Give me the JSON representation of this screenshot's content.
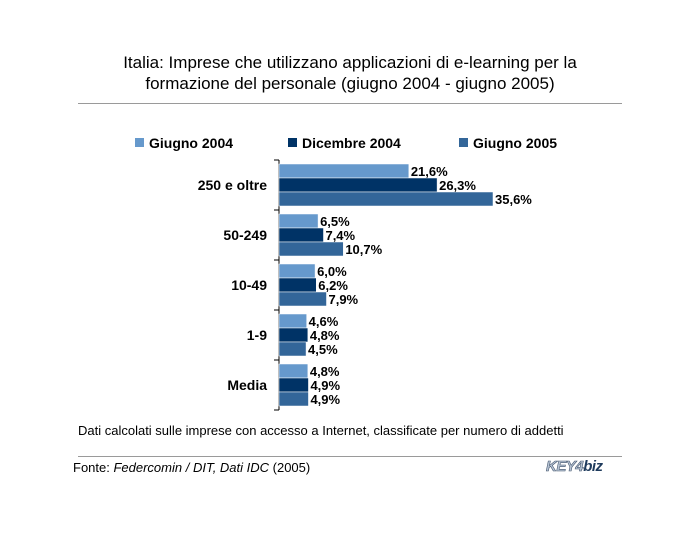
{
  "chart_data": {
    "type": "bar",
    "orientation": "horizontal",
    "title_lines": [
      "Italia: Imprese che utilizzano applicazioni di e-learning per la",
      "formazione del personale (giugno 2004 - giugno 2005)"
    ],
    "categories": [
      "250 e oltre",
      "50-249",
      "10-49",
      "1-9",
      "Media"
    ],
    "series": [
      {
        "name": "Giugno 2004",
        "color": "#6699cc",
        "values": [
          21.6,
          6.5,
          6.0,
          4.6,
          4.8
        ],
        "labels": [
          "21,6%",
          "6,5%",
          "6,0%",
          "4,6%",
          "4,8%"
        ]
      },
      {
        "name": "Dicembre 2004",
        "color": "#003366",
        "values": [
          26.3,
          7.4,
          6.2,
          4.8,
          4.9
        ],
        "labels": [
          "26,3%",
          "7,4%",
          "6,2%",
          "4,8%",
          "4,9%"
        ]
      },
      {
        "name": "Giugno 2005",
        "color": "#336699",
        "values": [
          35.6,
          10.7,
          7.9,
          4.5,
          4.9
        ],
        "labels": [
          "35,6%",
          "10,7%",
          "7,9%",
          "4,5%",
          "4,9%"
        ]
      }
    ],
    "xlim": [
      0,
      40
    ],
    "legend": "top",
    "grid": false,
    "note": "Dati calcolati sulle imprese con accesso a Internet, classificate per numero di addetti",
    "source_prefix": "Fonte: ",
    "source_italic": "Federcomin / DIT, Dati IDC",
    "source_suffix": " (2005)"
  },
  "logo": {
    "text_a": "KEY4",
    "text_b": "biz"
  }
}
